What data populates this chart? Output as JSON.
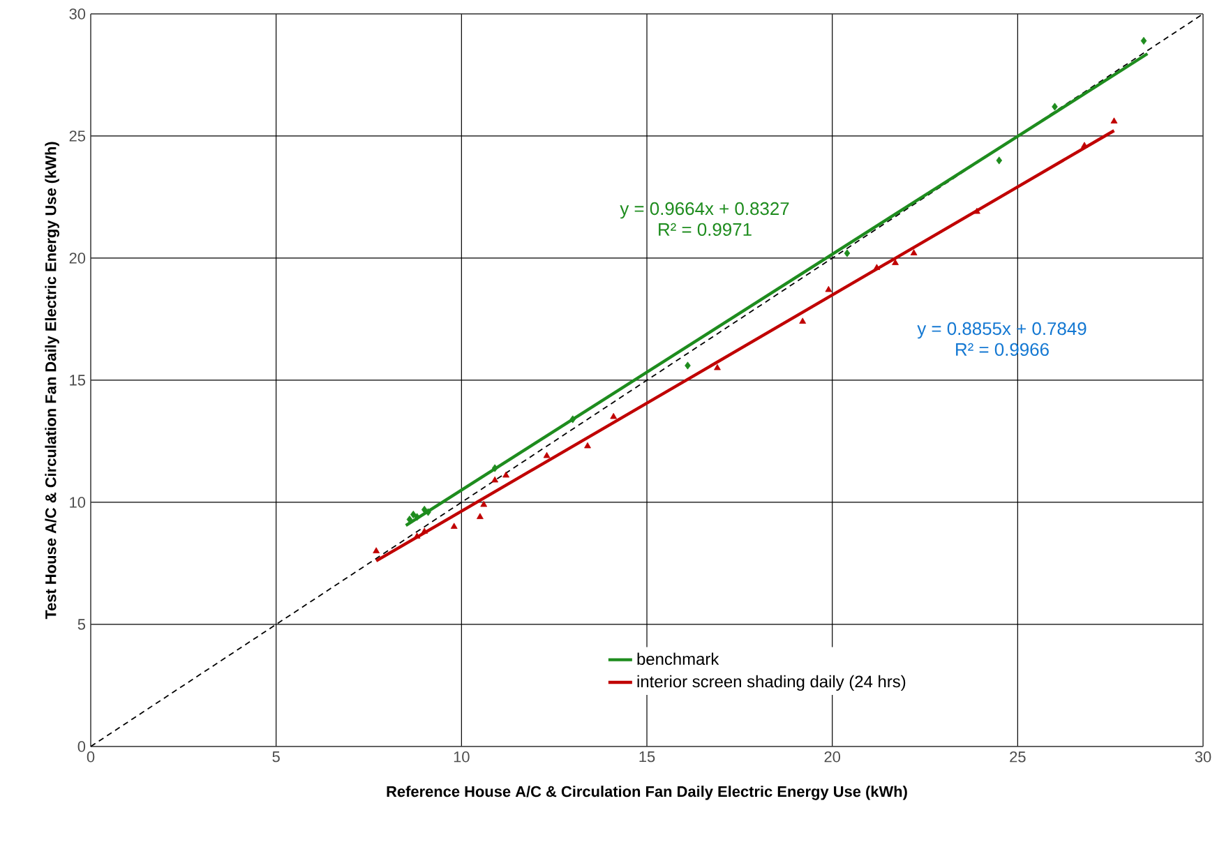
{
  "chart_data": {
    "type": "scatter",
    "xlabel": "Reference House A/C & Circulation Fan Daily Electric Energy Use (kWh)",
    "ylabel": "Test House A/C & Circulation Fan Daily Electric Energy Use (kWh)",
    "xlim": [
      0,
      30
    ],
    "ylim": [
      0,
      30
    ],
    "xticks": [
      0,
      5,
      10,
      15,
      20,
      25,
      30
    ],
    "yticks": [
      0,
      5,
      10,
      15,
      20,
      25,
      30
    ],
    "grid": true,
    "legend": "bottom right",
    "annotations": [
      "y = 0.9664x + 0.8327\nR² = 0.9971",
      "y = 0.8855x + 0.7849\nR² = 0.9966"
    ],
    "series": [
      {
        "color": "#1e8c1e",
        "marker": "diamond",
        "x": [
          8.6,
          8.7,
          8.8,
          9.0,
          9.1,
          10.9,
          13.0,
          16.1,
          20.4,
          24.5,
          26.0,
          28.4
        ],
        "values": [
          9.3,
          9.5,
          9.4,
          9.7,
          9.6,
          11.4,
          13.4,
          15.6,
          20.2,
          24.0,
          26.2,
          28.9
        ]
      },
      {
        "color": "#c00000",
        "marker": "triangle",
        "x": [
          7.7,
          8.8,
          9.0,
          9.8,
          10.5,
          10.6,
          10.9,
          11.2,
          12.3,
          13.4,
          14.1,
          16.9,
          19.2,
          19.9,
          21.2,
          21.7,
          22.2,
          23.9,
          26.8,
          27.6
        ],
        "values": [
          8.0,
          8.6,
          8.8,
          9.0,
          9.4,
          9.9,
          10.9,
          11.1,
          11.9,
          12.3,
          13.5,
          15.5,
          17.4,
          18.7,
          19.6,
          19.8,
          20.2,
          21.9,
          24.6,
          25.6
        ]
      },
      {
        "type": "line",
        "color": "#000000",
        "line_style": "dashed",
        "x": [
          0,
          30
        ],
        "values": [
          0,
          30
        ]
      },
      {
        "type": "line",
        "name": "benchmark",
        "color": "#1e8c1e",
        "line_style": "solid",
        "x": [
          8.5,
          28.5
        ],
        "values": [
          9.05,
          28.37
        ]
      },
      {
        "type": "line",
        "name": "interior screen shading daily (24 hrs)",
        "color": "#c00000",
        "line_style": "solid",
        "x": [
          7.7,
          27.6
        ],
        "values": [
          7.6,
          25.22
        ]
      }
    ]
  }
}
